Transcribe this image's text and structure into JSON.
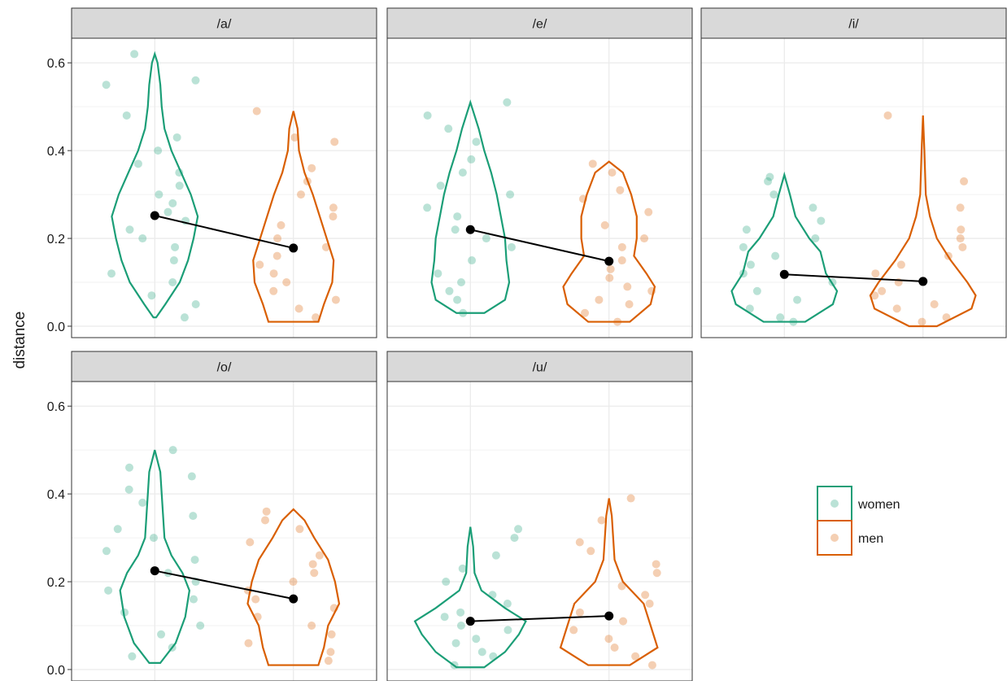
{
  "chart_data": {
    "type": "violin",
    "ylabel": "distance",
    "ylim": [
      -0.026,
      0.656
    ],
    "yticks": [
      {
        "value": 0,
        "label": "0.0"
      },
      0.2,
      0.4,
      0.6
    ],
    "minor_yticks": [
      0.1,
      0.3,
      0.5
    ],
    "xlim": [
      0.4,
      2.6
    ],
    "grid": true,
    "series": [
      {
        "name": "women",
        "color": "#1b9e77"
      },
      {
        "name": "men",
        "color": "#d95f02"
      }
    ],
    "facets": [
      {
        "label": "/a/",
        "means": [
          0.252,
          0.178
        ],
        "violins": [
          {
            "y": [
              0.02,
              0.05,
              0.1,
              0.15,
              0.2,
              0.25,
              0.3,
              0.35,
              0.4,
              0.45,
              0.5,
              0.55,
              0.6,
              0.62
            ],
            "width": [
              0.01,
              0.076,
              0.18,
              0.24,
              0.28,
              0.31,
              0.26,
              0.19,
              0.12,
              0.07,
              0.05,
              0.04,
              0.02,
              0
            ]
          },
          {
            "y": [
              0.01,
              0.05,
              0.1,
              0.15,
              0.2,
              0.25,
              0.3,
              0.35,
              0.4,
              0.45,
              0.49
            ],
            "width": [
              0.18,
              0.22,
              0.28,
              0.29,
              0.24,
              0.19,
              0.14,
              0.08,
              0.04,
              0.03,
              0
            ]
          }
        ],
        "points": [
          [
            0.55,
            0.56,
            0.62,
            0.48,
            0.43,
            0.4,
            0.37,
            0.35,
            0.32,
            0.3,
            0.28,
            0.26,
            0.24,
            0.22,
            0.2,
            0.18,
            0.15,
            0.12,
            0.1,
            0.07,
            0.05,
            0.02
          ],
          [
            0.49,
            0.43,
            0.42,
            0.36,
            0.33,
            0.3,
            0.27,
            0.25,
            0.23,
            0.2,
            0.18,
            0.16,
            0.14,
            0.12,
            0.1,
            0.08,
            0.06,
            0.04,
            0.02
          ]
        ]
      },
      {
        "label": "/e/",
        "means": [
          0.22,
          0.148
        ],
        "violins": [
          {
            "y": [
              0.03,
              0.06,
              0.1,
              0.15,
              0.2,
              0.25,
              0.3,
              0.35,
              0.4,
              0.45,
              0.51
            ],
            "width": [
              0.1,
              0.25,
              0.28,
              0.26,
              0.25,
              0.22,
              0.19,
              0.15,
              0.1,
              0.06,
              0
            ]
          },
          {
            "y": [
              0.01,
              0.05,
              0.09,
              0.12,
              0.16,
              0.2,
              0.25,
              0.3,
              0.35,
              0.375
            ],
            "width": [
              0.15,
              0.3,
              0.33,
              0.27,
              0.18,
              0.2,
              0.2,
              0.16,
              0.1,
              0
            ]
          }
        ],
        "points": [
          [
            0.51,
            0.48,
            0.45,
            0.42,
            0.38,
            0.35,
            0.32,
            0.3,
            0.27,
            0.25,
            0.22,
            0.2,
            0.18,
            0.15,
            0.12,
            0.1,
            0.08,
            0.06,
            0.03
          ],
          [
            0.37,
            0.35,
            0.31,
            0.29,
            0.26,
            0.23,
            0.2,
            0.18,
            0.15,
            0.13,
            0.11,
            0.09,
            0.08,
            0.06,
            0.05,
            0.03,
            0.01
          ]
        ]
      },
      {
        "label": "/i/",
        "means": [
          0.118,
          0.102
        ],
        "violins": [
          {
            "y": [
              0.01,
              0.05,
              0.08,
              0.12,
              0.17,
              0.2,
              0.25,
              0.3,
              0.345
            ],
            "width": [
              0.15,
              0.35,
              0.38,
              0.3,
              0.26,
              0.18,
              0.08,
              0.04,
              0
            ]
          },
          {
            "y": [
              0.0,
              0.04,
              0.07,
              0.1,
              0.15,
              0.2,
              0.25,
              0.3,
              0.4,
              0.48
            ],
            "width": [
              0.1,
              0.35,
              0.38,
              0.32,
              0.2,
              0.1,
              0.05,
              0.02,
              0.01,
              0
            ]
          }
        ],
        "points": [
          [
            0.34,
            0.33,
            0.3,
            0.27,
            0.24,
            0.22,
            0.2,
            0.18,
            0.16,
            0.14,
            0.12,
            0.1,
            0.08,
            0.06,
            0.04,
            0.02,
            0.01
          ],
          [
            0.48,
            0.33,
            0.27,
            0.22,
            0.2,
            0.18,
            0.16,
            0.14,
            0.12,
            0.1,
            0.08,
            0.07,
            0.05,
            0.04,
            0.02,
            0.01
          ]
        ]
      },
      {
        "label": "/o/",
        "means": [
          0.225,
          0.161
        ],
        "violins": [
          {
            "y": [
              0.015,
              0.06,
              0.12,
              0.18,
              0.22,
              0.26,
              0.3,
              0.35,
              0.4,
              0.45,
              0.5
            ],
            "width": [
              0.04,
              0.15,
              0.22,
              0.25,
              0.2,
              0.12,
              0.07,
              0.06,
              0.05,
              0.04,
              0
            ]
          },
          {
            "y": [
              0.01,
              0.05,
              0.1,
              0.15,
              0.2,
              0.25,
              0.3,
              0.34,
              0.365
            ],
            "width": [
              0.18,
              0.22,
              0.25,
              0.33,
              0.3,
              0.25,
              0.15,
              0.08,
              0
            ]
          }
        ],
        "points": [
          [
            0.5,
            0.46,
            0.44,
            0.41,
            0.38,
            0.35,
            0.32,
            0.3,
            0.27,
            0.25,
            0.22,
            0.2,
            0.18,
            0.16,
            0.13,
            0.1,
            0.08,
            0.05,
            0.03
          ],
          [
            0.36,
            0.34,
            0.32,
            0.29,
            0.26,
            0.24,
            0.22,
            0.2,
            0.18,
            0.16,
            0.14,
            0.12,
            0.1,
            0.08,
            0.06,
            0.04,
            0.02
          ]
        ]
      },
      {
        "label": "/u/",
        "means": [
          0.11,
          0.122
        ],
        "violins": [
          {
            "y": [
              0.005,
              0.04,
              0.08,
              0.11,
              0.14,
              0.18,
              0.22,
              0.28,
              0.325
            ],
            "width": [
              0.1,
              0.25,
              0.35,
              0.4,
              0.25,
              0.08,
              0.03,
              0.02,
              0
            ]
          },
          {
            "y": [
              0.01,
              0.05,
              0.1,
              0.15,
              0.2,
              0.25,
              0.3,
              0.35,
              0.39
            ],
            "width": [
              0.15,
              0.35,
              0.3,
              0.25,
              0.1,
              0.04,
              0.03,
              0.02,
              0
            ]
          }
        ],
        "points": [
          [
            0.32,
            0.3,
            0.26,
            0.23,
            0.2,
            0.17,
            0.15,
            0.13,
            0.12,
            0.1,
            0.09,
            0.07,
            0.06,
            0.04,
            0.03,
            0.01
          ],
          [
            0.39,
            0.34,
            0.29,
            0.27,
            0.24,
            0.22,
            0.19,
            0.17,
            0.15,
            0.13,
            0.11,
            0.09,
            0.07,
            0.05,
            0.03,
            0.01
          ]
        ]
      }
    ]
  }
}
